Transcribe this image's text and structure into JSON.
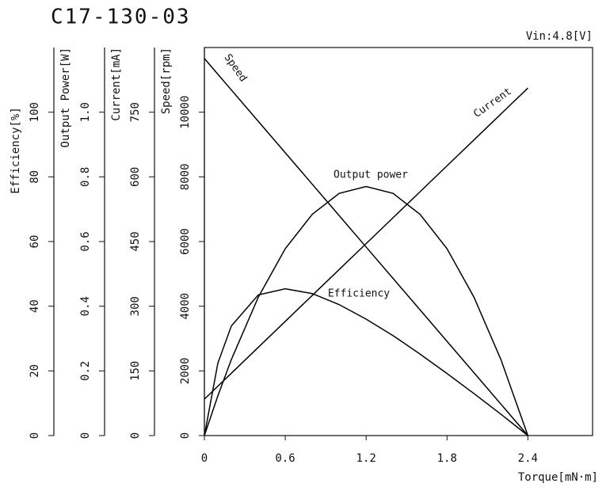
{
  "chart_data": {
    "type": "line",
    "title": "C17-130-03",
    "annotation": "Vin:4.8[V]",
    "x_label": "Torque[mN·m]",
    "xlim": [
      0,
      2.88
    ],
    "xticks": [
      0,
      0.6,
      1.2,
      1.8,
      2.4
    ],
    "x": [
      0,
      0.1,
      0.2,
      0.4,
      0.6,
      0.8,
      1.0,
      1.2,
      1.4,
      1.6,
      1.8,
      2.0,
      2.2,
      2.4
    ],
    "y_axes": [
      {
        "label": "Efficiency[%]",
        "lim": [
          0,
          120
        ],
        "ticks": [
          0,
          20,
          40,
          60,
          80,
          100
        ]
      },
      {
        "label": "Output Power[W]",
        "lim": [
          0,
          1.2
        ],
        "ticks": [
          0,
          0.2,
          0.4,
          0.6,
          0.8,
          {
            "value": 1,
            "label": "1.0"
          }
        ]
      },
      {
        "label": "Current[mA]",
        "lim": [
          0,
          900
        ],
        "ticks": [
          0,
          150,
          300,
          450,
          600,
          750
        ]
      },
      {
        "label": "Speed[rpm]",
        "lim": [
          0,
          12000
        ],
        "ticks": [
          0,
          2000,
          4000,
          6000,
          8000,
          10000
        ]
      }
    ],
    "series": [
      {
        "name": "Speed",
        "color": "#000000",
        "axis": 3,
        "values": [
          11660,
          11174,
          10688,
          9717,
          8745,
          7774,
          6802,
          5830,
          4858,
          3887,
          2915,
          1944,
          972,
          0
        ]
      },
      {
        "name": "Current",
        "color": "#000000",
        "axis": 2,
        "values": [
          84.5,
          114.6,
          144.6,
          204.7,
          264.9,
          325,
          385.1,
          445.2,
          505.3,
          565.5,
          625.6,
          685.7,
          745.8,
          806
        ]
      },
      {
        "name": "Output power",
        "color": "#000000",
        "axis": 1,
        "values": [
          0,
          0.123,
          0.235,
          0.428,
          0.578,
          0.684,
          0.749,
          0.77,
          0.749,
          0.684,
          0.578,
          0.428,
          0.235,
          0
        ]
      },
      {
        "name": "Efficiency",
        "color": "#000000",
        "axis": 0,
        "values": [
          0,
          22.4,
          33.9,
          43.5,
          45.4,
          43.9,
          40.5,
          36.0,
          30.9,
          25.2,
          19.2,
          13.0,
          6.6,
          0
        ]
      }
    ]
  }
}
